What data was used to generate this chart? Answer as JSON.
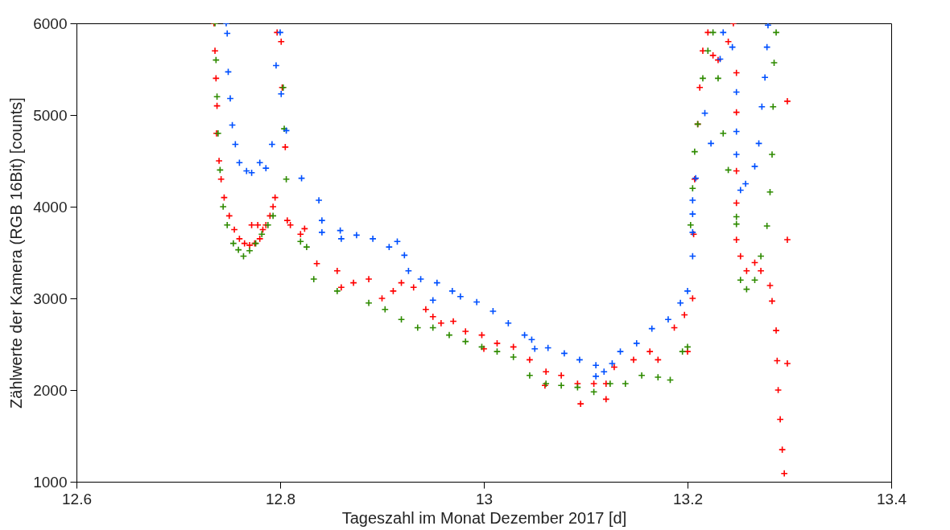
{
  "chart_data": {
    "type": "scatter",
    "xlabel": "Tageszahl im Monat Dezember 2017 [d]",
    "ylabel": "Zählwerte der Kamera (RGB 16Bit) [counts]",
    "xlim": [
      12.6,
      13.4
    ],
    "ylim": [
      1000,
      6000
    ],
    "xticks": [
      12.6,
      12.8,
      13,
      13.2,
      13.4
    ],
    "yticks": [
      1000,
      2000,
      3000,
      4000,
      5000,
      6000
    ],
    "grid": false,
    "marker": "cross",
    "series": [
      {
        "color": "#ff0000",
        "x": [
          12.735,
          12.736,
          12.737,
          12.738,
          12.7375,
          12.74,
          12.742,
          12.745,
          12.75,
          12.755,
          12.76,
          12.765,
          12.77,
          12.775,
          12.78,
          12.783,
          12.786,
          12.79,
          12.793,
          12.795,
          12.772,
          12.778,
          12.797,
          12.801,
          12.802,
          12.805,
          12.807,
          12.81,
          12.82,
          12.824,
          12.836,
          12.856,
          12.872,
          12.887,
          12.911,
          12.919,
          12.931,
          12.943,
          12.958,
          12.97,
          12.982,
          12.998,
          13.013,
          13.029,
          13.045,
          13.061,
          13.076,
          13.092,
          13.108,
          13.12,
          13.128,
          13.147,
          13.163,
          13.171,
          13.187,
          13.197,
          13.2,
          12.86,
          12.9,
          12.95,
          13.0,
          13.06,
          13.095,
          13.12,
          13.205,
          13.206,
          13.207,
          13.21,
          13.212,
          13.215,
          13.22,
          13.225,
          13.23,
          13.24,
          13.245,
          13.248,
          13.248,
          13.248,
          13.248,
          13.248,
          13.252,
          13.258,
          13.266,
          13.272,
          13.281,
          13.283,
          13.287,
          13.288,
          13.289,
          13.291,
          13.293,
          13.295,
          13.298,
          13.298,
          13.298
        ],
        "values": [
          6000,
          5700,
          5400,
          5100,
          4800,
          4500,
          4300,
          4100,
          3900,
          3750,
          3650,
          3600,
          3580,
          3600,
          3650,
          3750,
          3800,
          3900,
          4000,
          4100,
          3800,
          3800,
          5900,
          5800,
          5300,
          4650,
          3850,
          3800,
          3700,
          3760,
          3380,
          3300,
          3170,
          3210,
          3080,
          3170,
          3120,
          2880,
          2730,
          2750,
          2640,
          2600,
          2510,
          2470,
          2330,
          2200,
          2160,
          2070,
          2070,
          2070,
          2250,
          2330,
          2420,
          2330,
          2680,
          2820,
          2420,
          3120,
          3000,
          2800,
          2450,
          2050,
          1850,
          1900,
          3000,
          3700,
          4300,
          4900,
          5300,
          5700,
          5900,
          5650,
          5600,
          5800,
          6000,
          5460,
          5030,
          4390,
          4040,
          3640,
          3460,
          3300,
          3390,
          3300,
          3140,
          2970,
          2650,
          2320,
          2000,
          1680,
          1350,
          1090,
          5150,
          3640,
          2290
        ]
      },
      {
        "color": "#2e8b00",
        "x": [
          12.736,
          12.737,
          12.738,
          12.739,
          12.741,
          12.744,
          12.748,
          12.754,
          12.759,
          12.764,
          12.77,
          12.776,
          12.782,
          12.788,
          12.793,
          12.803,
          12.804,
          12.806,
          12.82,
          12.826,
          12.833,
          12.856,
          12.887,
          12.903,
          12.919,
          12.935,
          12.95,
          12.966,
          12.982,
          12.998,
          13.013,
          13.029,
          13.045,
          13.061,
          13.076,
          13.092,
          13.108,
          13.124,
          13.139,
          13.155,
          13.171,
          13.183,
          13.195,
          13.2,
          13.203,
          13.205,
          13.207,
          13.21,
          13.215,
          13.22,
          13.225,
          13.23,
          13.235,
          13.24,
          13.248,
          13.248,
          13.252,
          13.258,
          13.266,
          13.272,
          13.278,
          13.281,
          13.283,
          13.284,
          13.285,
          13.287
        ],
        "values": [
          6000,
          5600,
          5200,
          4800,
          4400,
          4000,
          3800,
          3600,
          3530,
          3460,
          3520,
          3600,
          3700,
          3800,
          3900,
          5300,
          4850,
          4300,
          3620,
          3560,
          3210,
          3080,
          2950,
          2880,
          2770,
          2680,
          2680,
          2600,
          2530,
          2470,
          2420,
          2360,
          2160,
          2070,
          2050,
          2030,
          1980,
          2070,
          2070,
          2160,
          2140,
          2110,
          2420,
          2470,
          3800,
          4200,
          4600,
          4900,
          5400,
          5700,
          5900,
          5400,
          4800,
          4400,
          3890,
          3810,
          3200,
          3100,
          3200,
          3460,
          3790,
          4160,
          4570,
          5090,
          5570,
          5900
        ]
      },
      {
        "color": "#0050ff",
        "x": [
          12.747,
          12.748,
          12.749,
          12.751,
          12.753,
          12.756,
          12.76,
          12.767,
          12.772,
          12.78,
          12.786,
          12.792,
          12.796,
          12.8,
          12.801,
          12.806,
          12.821,
          12.838,
          12.841,
          12.841,
          12.859,
          12.875,
          12.891,
          12.907,
          12.915,
          12.922,
          12.926,
          12.938,
          12.954,
          12.969,
          12.977,
          12.993,
          13.009,
          13.024,
          13.04,
          13.047,
          13.063,
          13.079,
          13.094,
          13.11,
          13.118,
          13.126,
          13.134,
          13.15,
          13.165,
          13.181,
          13.193,
          13.2,
          12.86,
          12.95,
          13.05,
          13.11,
          13.205,
          13.205,
          13.205,
          13.205,
          13.208,
          13.217,
          13.223,
          13.232,
          13.235,
          13.244,
          13.248,
          13.248,
          13.248,
          13.252,
          13.257,
          13.266,
          13.27,
          13.273,
          13.276,
          13.278,
          13.279
        ],
        "values": [
          6000,
          5890,
          5470,
          5180,
          4890,
          4680,
          4480,
          4390,
          4370,
          4480,
          4420,
          4680,
          5540,
          5900,
          5230,
          4830,
          4310,
          4070,
          3850,
          3720,
          3740,
          3690,
          3650,
          3560,
          3620,
          3470,
          3300,
          3210,
          3170,
          3080,
          3020,
          2960,
          2860,
          2730,
          2600,
          2550,
          2460,
          2400,
          2330,
          2270,
          2200,
          2290,
          2420,
          2510,
          2670,
          2770,
          2950,
          3080,
          3650,
          2980,
          2450,
          2150,
          3460,
          3720,
          3920,
          4070,
          4310,
          5020,
          4690,
          5610,
          5900,
          5740,
          5250,
          4820,
          4570,
          4180,
          4250,
          4440,
          4690,
          5090,
          5410,
          5740,
          5980
        ]
      }
    ]
  }
}
